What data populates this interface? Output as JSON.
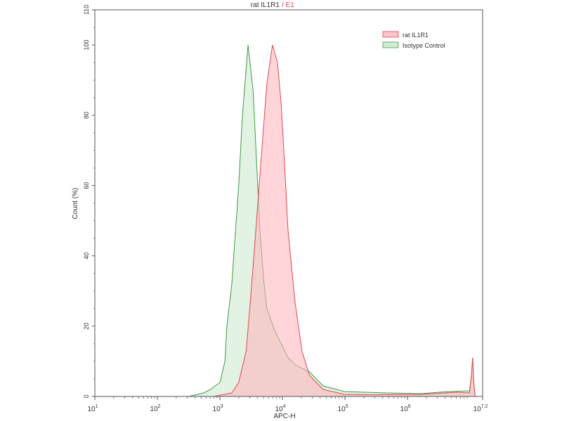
{
  "chart_data": {
    "type": "area",
    "title": "rat IL1R1",
    "title_suffix": "/ E1",
    "xlabel": "APC-H",
    "ylabel": "Count (%)",
    "x_scale": "log10",
    "xlim_log10": [
      1,
      7.2
    ],
    "ylim": [
      0,
      110
    ],
    "x_ticks": [
      {
        "exp": 1,
        "base": "10",
        "sup": "1"
      },
      {
        "exp": 2,
        "base": "10",
        "sup": "2"
      },
      {
        "exp": 3,
        "base": "10",
        "sup": "3"
      },
      {
        "exp": 4,
        "base": "10",
        "sup": "4"
      },
      {
        "exp": 5,
        "base": "10",
        "sup": "5"
      },
      {
        "exp": 6,
        "base": "10",
        "sup": "6"
      },
      {
        "exp": 7.2,
        "base": "10",
        "sup": "7.2"
      }
    ],
    "y_ticks": [
      0,
      20,
      40,
      60,
      80,
      100,
      110
    ],
    "legend_position": "top-right",
    "series": [
      {
        "name": "rat IL1R1",
        "line_color": "#e0484f",
        "fill_color": "#ffb3bb",
        "points_log10x_y": [
          [
            2.9,
            0
          ],
          [
            3.19,
            1
          ],
          [
            3.3,
            4
          ],
          [
            3.42,
            13
          ],
          [
            3.53,
            37
          ],
          [
            3.64,
            63
          ],
          [
            3.75,
            89
          ],
          [
            3.84,
            100
          ],
          [
            3.92,
            95
          ],
          [
            3.98,
            83
          ],
          [
            4.03,
            67
          ],
          [
            4.09,
            47
          ],
          [
            4.2,
            27
          ],
          [
            4.31,
            13
          ],
          [
            4.43,
            6
          ],
          [
            4.65,
            2
          ],
          [
            4.99,
            0.6
          ],
          [
            5.5,
            0.5
          ],
          [
            6.22,
            0.6
          ],
          [
            6.79,
            1.2
          ],
          [
            6.99,
            1
          ],
          [
            7.02,
            6
          ],
          [
            7.04,
            11
          ],
          [
            7.06,
            4
          ],
          [
            7.08,
            0
          ]
        ]
      },
      {
        "name": "Isotype Control",
        "line_color": "#3f9a45",
        "fill_color": "#bfe3c0",
        "points_log10x_y": [
          [
            2.5,
            0
          ],
          [
            2.74,
            1
          ],
          [
            2.85,
            2
          ],
          [
            3.0,
            4
          ],
          [
            3.08,
            10
          ],
          [
            3.11,
            20
          ],
          [
            3.19,
            32
          ],
          [
            3.22,
            40
          ],
          [
            3.3,
            60
          ],
          [
            3.36,
            80
          ],
          [
            3.45,
            100
          ],
          [
            3.53,
            87
          ],
          [
            3.58,
            69
          ],
          [
            3.64,
            47
          ],
          [
            3.7,
            33
          ],
          [
            3.75,
            25
          ],
          [
            3.87,
            19
          ],
          [
            3.98,
            15
          ],
          [
            4.09,
            11
          ],
          [
            4.2,
            9
          ],
          [
            4.43,
            7
          ],
          [
            4.65,
            3
          ],
          [
            4.99,
            1.4
          ],
          [
            5.66,
            1
          ],
          [
            6.22,
            0.8
          ],
          [
            6.67,
            1.4
          ],
          [
            6.99,
            1.6
          ],
          [
            7.02,
            6
          ],
          [
            7.04,
            11
          ],
          [
            7.06,
            4
          ],
          [
            7.08,
            0
          ]
        ]
      }
    ]
  }
}
